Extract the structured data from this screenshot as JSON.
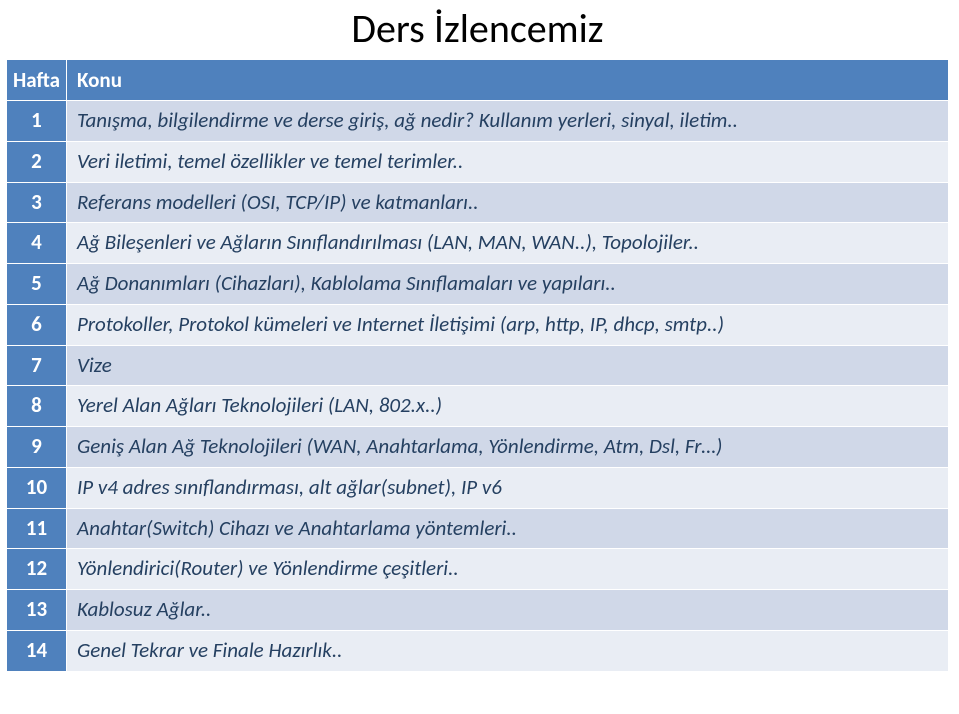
{
  "title": "Ders İzlencemiz",
  "headers": {
    "week": "Hafta",
    "topic": "Konu"
  },
  "colors": {
    "header_bg": "#4f81bd",
    "header_fg": "#ffffff",
    "band_a": "#d0d8e8",
    "band_b": "#e9edf4",
    "text": "#254061",
    "title": "#000000"
  },
  "font": {
    "family": "Calibri",
    "title_size_pt": 30,
    "cell_size_pt": 16
  },
  "rows": [
    {
      "week": "1",
      "topic": "Tanışma, bilgilendirme ve derse giriş, ağ nedir? Kullanım yerleri, sinyal, iletim.."
    },
    {
      "week": "2",
      "topic": "Veri iletimi, temel özellikler ve temel terimler.."
    },
    {
      "week": "3",
      "topic": "Referans modelleri (OSI, TCP/IP) ve katmanları.."
    },
    {
      "week": "4",
      "topic": "Ağ Bileşenleri ve Ağların Sınıflandırılması (LAN, MAN, WAN..), Topolojiler.."
    },
    {
      "week": "5",
      "topic": "Ağ Donanımları (Cihazları), Kablolama Sınıflamaları ve yapıları.."
    },
    {
      "week": "6",
      "topic": "Protokoller, Protokol kümeleri ve Internet İletişimi (arp, http, IP, dhcp, smtp..)"
    },
    {
      "week": "7",
      "topic": "Vize"
    },
    {
      "week": "8",
      "topic": "Yerel Alan Ağları Teknolojileri (LAN, 802.x..)"
    },
    {
      "week": "9",
      "topic": "Geniş Alan Ağ Teknolojileri (WAN, Anahtarlama, Yönlendirme, Atm, Dsl, Fr…)"
    },
    {
      "week": "10",
      "topic": "IP v4 adres sınıflandırması, alt ağlar(subnet), IP v6"
    },
    {
      "week": "11",
      "topic": "Anahtar(Switch) Cihazı ve Anahtarlama yöntemleri.."
    },
    {
      "week": "12",
      "topic": "Yönlendirici(Router) ve Yönlendirme çeşitleri.."
    },
    {
      "week": "13",
      "topic": "Kablosuz Ağlar.."
    },
    {
      "week": "14",
      "topic": "Genel Tekrar ve Finale Hazırlık.."
    }
  ]
}
